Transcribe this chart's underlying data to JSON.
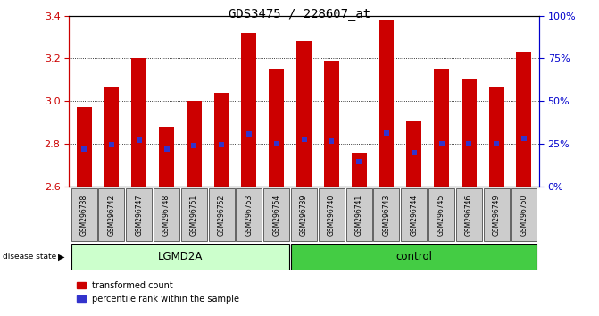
{
  "title": "GDS3475 / 228607_at",
  "samples": [
    "GSM296738",
    "GSM296742",
    "GSM296747",
    "GSM296748",
    "GSM296751",
    "GSM296752",
    "GSM296753",
    "GSM296754",
    "GSM296739",
    "GSM296740",
    "GSM296741",
    "GSM296743",
    "GSM296744",
    "GSM296745",
    "GSM296746",
    "GSM296749",
    "GSM296750"
  ],
  "transformed_count": [
    2.97,
    3.07,
    3.2,
    2.88,
    3.0,
    3.04,
    3.32,
    3.15,
    3.28,
    3.19,
    2.76,
    3.38,
    2.91,
    3.15,
    3.1,
    3.07,
    3.23
  ],
  "percentile_rank_y": [
    2.775,
    2.795,
    2.815,
    2.775,
    2.792,
    2.795,
    2.845,
    2.8,
    2.82,
    2.812,
    2.718,
    2.85,
    2.76,
    2.8,
    2.8,
    2.8,
    2.825
  ],
  "groups": [
    "LGMD2A",
    "LGMD2A",
    "LGMD2A",
    "LGMD2A",
    "LGMD2A",
    "LGMD2A",
    "LGMD2A",
    "LGMD2A",
    "control",
    "control",
    "control",
    "control",
    "control",
    "control",
    "control",
    "control",
    "control"
  ],
  "ymin": 2.6,
  "ymax": 3.4,
  "bar_color": "#cc0000",
  "marker_color": "#3333cc",
  "lgmd2a_color": "#ccffcc",
  "control_color": "#44cc44",
  "title_color": "#000000",
  "left_axis_color": "#cc0000",
  "right_axis_color": "#0000cc",
  "background_color": "#ffffff",
  "tick_label_bg": "#cccccc"
}
